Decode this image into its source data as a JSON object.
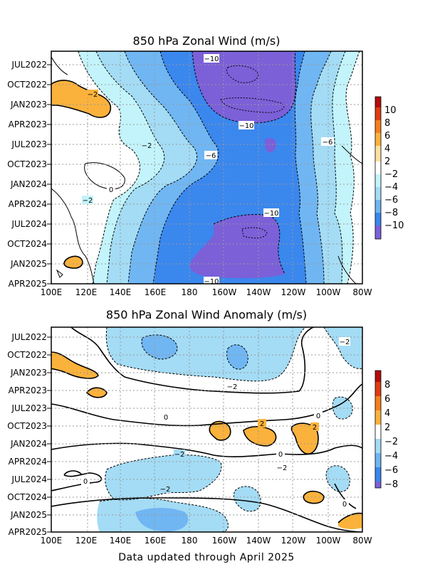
{
  "footer": "Data updated through April 2025",
  "colors": {
    "neg_1": "#c3f4fb",
    "neg_2": "#a4dcf5",
    "neg_3": "#70b6f3",
    "neg_4": "#3a87ee",
    "neg_5": "#7b60d8",
    "pos_1": "#fbb23c",
    "pos_2": "#f57f1a",
    "pos_3": "#e03b11",
    "pos_4": "#b20d0d"
  },
  "chart_data": [
    {
      "type": "heatmap",
      "title": "850 hPa Zonal Wind (m/s)",
      "x_ticks": [
        "100E",
        "120E",
        "140E",
        "160E",
        "180",
        "160W",
        "140W",
        "120W",
        "100W",
        "80W"
      ],
      "y_ticks": [
        "JUL2022",
        "OCT2022",
        "JAN2023",
        "APR2023",
        "JUL2023",
        "OCT2023",
        "JAN2024",
        "APR2024",
        "JUL2024",
        "OCT2024",
        "JAN2025",
        "APR2025"
      ],
      "colorbar_labels": [
        "10",
        "8",
        "6",
        "4",
        "2",
        "−2",
        "−4",
        "−6",
        "−8",
        "−10"
      ],
      "contour_labels": [
        "−10",
        "−2",
        "−10",
        "−2",
        "−6",
        "−6",
        "0",
        "−2",
        "−10",
        "−10"
      ]
    },
    {
      "type": "heatmap",
      "title": "850 hPa Zonal Wind Anomaly (m/s)",
      "x_ticks": [
        "100E",
        "120E",
        "140E",
        "160E",
        "180",
        "160W",
        "140W",
        "120W",
        "100W",
        "80W"
      ],
      "y_ticks": [
        "JUL2022",
        "OCT2022",
        "JAN2023",
        "APR2023",
        "JUL2023",
        "OCT2023",
        "JAN2024",
        "APR2024",
        "JUL2024",
        "OCT2024",
        "JAN2025",
        "APR2025"
      ],
      "colorbar_labels": [
        "8",
        "6",
        "4",
        "2",
        "−2",
        "−4",
        "−6",
        "−8"
      ],
      "contour_labels": [
        "−2",
        "−2",
        "0",
        "0",
        "2",
        "2",
        "−2",
        "0",
        "−2",
        "0",
        "−2",
        "0"
      ]
    }
  ]
}
